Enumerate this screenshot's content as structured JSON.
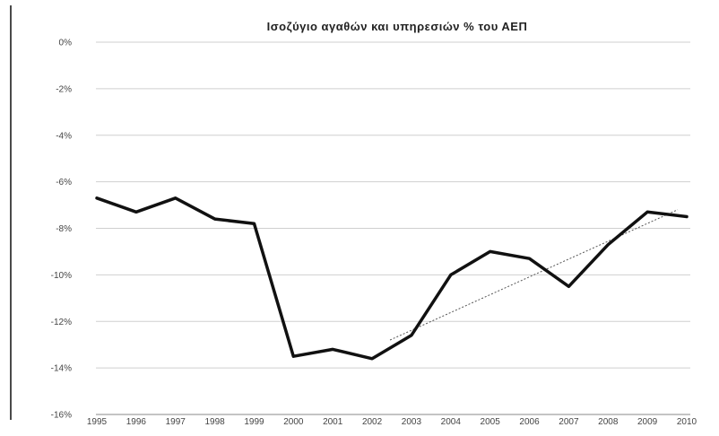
{
  "chart_data": {
    "type": "line",
    "title": "Ισοζύγιο αγαθών και υπηρεσιών % του ΑΕΠ",
    "xlabel": "",
    "ylabel": "",
    "ylim": [
      -16,
      0
    ],
    "yticks": [
      0,
      -2,
      -4,
      -6,
      -8,
      -10,
      -12,
      -14,
      -16
    ],
    "ytick_labels": [
      "0%",
      "-2%",
      "-4%",
      "-6%",
      "-8%",
      "-10%",
      "-12%",
      "-14%",
      "-16%"
    ],
    "categories": [
      "1995",
      "1996",
      "1997",
      "1998",
      "1999",
      "2000",
      "2001",
      "2002",
      "2003",
      "2004",
      "2005",
      "2006",
      "2007",
      "2008",
      "2009",
      "2010"
    ],
    "series": [
      {
        "values": [
          -6.7,
          -7.3,
          -6.7,
          -7.6,
          -7.8,
          -13.5,
          -13.2,
          -13.6,
          -12.6,
          -10.0,
          -9.0,
          -9.3,
          -10.5,
          -8.7,
          -7.3,
          -7.5
        ],
        "color": "#111111",
        "style": "solid"
      }
    ],
    "trendline": {
      "x": [
        "2002",
        "2010"
      ],
      "values": [
        -12.8,
        -7.2
      ],
      "style": "dotted",
      "color": "#555555"
    },
    "grid": true,
    "legend": "none"
  }
}
